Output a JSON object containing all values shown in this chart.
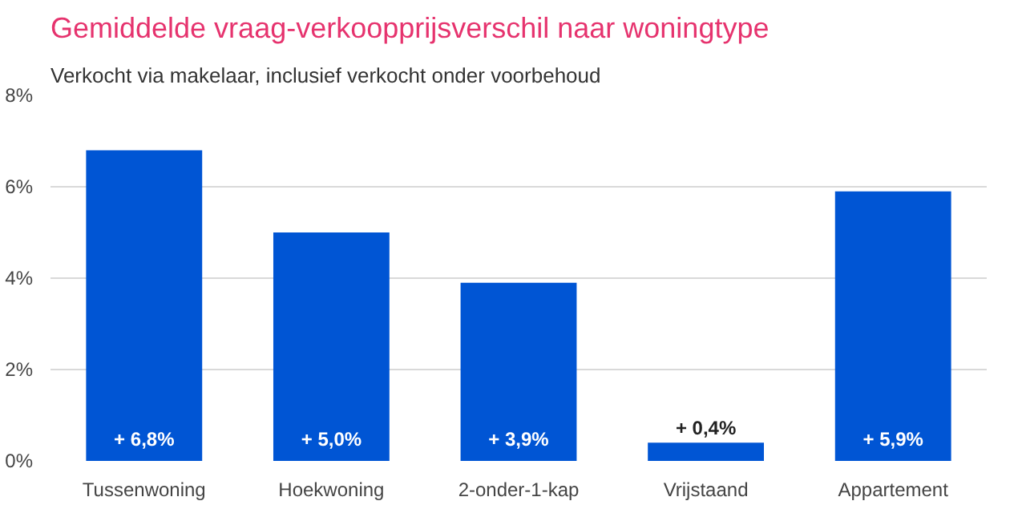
{
  "chart_data": {
    "type": "bar",
    "title": "Gemiddelde vraag-verkoopprijsverschil naar woningtype",
    "subtitle": "Verkocht via makelaar, inclusief verkocht onder voorbehoud",
    "categories": [
      "Tussenwoning",
      "Hoekwoning",
      "2-onder-1-kap",
      "Vrijstaand",
      "Appartement"
    ],
    "values": [
      6.8,
      5.0,
      3.9,
      0.4,
      5.9
    ],
    "value_labels": [
      "+ 6,8%",
      "+ 5,0%",
      "+ 3,9%",
      "+ 0,4%",
      "+ 5,9%"
    ],
    "color": "#0055d4",
    "ylim": [
      0,
      8
    ],
    "yticks": [
      {
        "value": 0,
        "label": "0%"
      },
      {
        "value": 2,
        "label": "2%"
      },
      {
        "value": 4,
        "label": "4%"
      },
      {
        "value": 6,
        "label": "6%"
      },
      {
        "value": 8,
        "label": "8%"
      }
    ],
    "grid": "y"
  }
}
